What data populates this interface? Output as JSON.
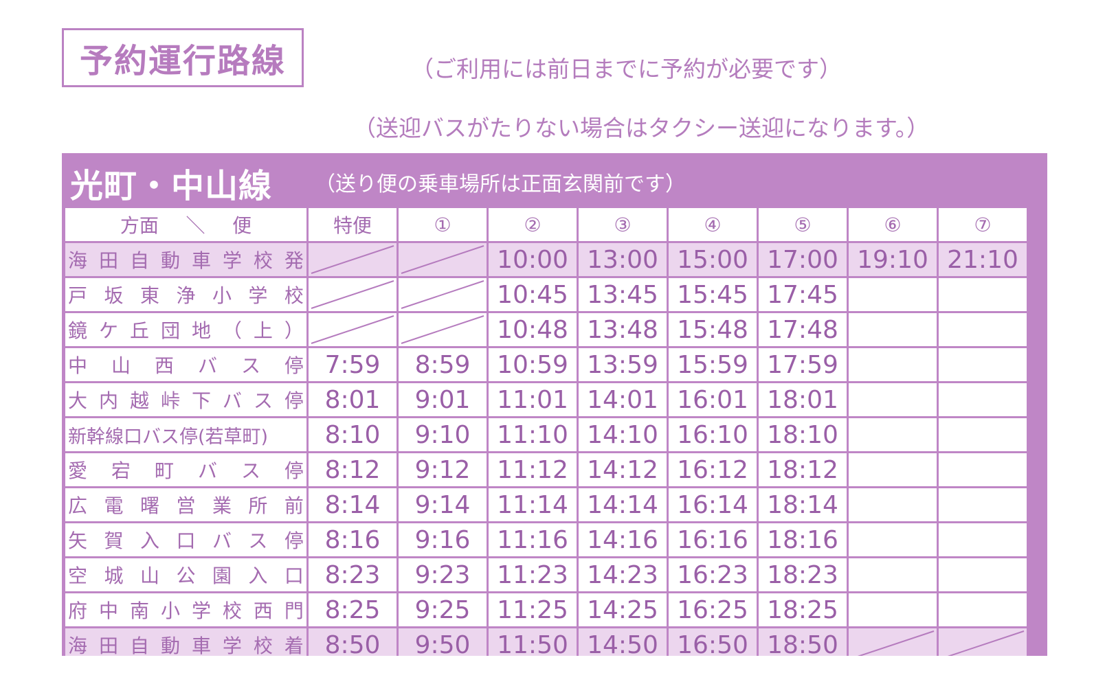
{
  "page_title": "予約運行路線",
  "notes": [
    "（ご利用には前日までに予約が必要です）",
    "（送迎バスがたりない場合はタクシー送迎になります。）"
  ],
  "timetable": {
    "route_name": "光町・中山線",
    "route_note": "（送り便の乗車場所は正面玄関前です）",
    "header_first": [
      "方面",
      "＼",
      "便"
    ],
    "columns": [
      "特便",
      "①",
      "②",
      "③",
      "④",
      "⑤",
      "⑥",
      "⑦"
    ],
    "rows": [
      {
        "stop": "海田自動車学校発",
        "highlight": true,
        "times": [
          "",
          "",
          "10:00",
          "13:00",
          "15:00",
          "17:00",
          "19:10",
          "21:10"
        ],
        "dashed": [
          0,
          1
        ]
      },
      {
        "stop": "戸坂東浄小学校",
        "highlight": false,
        "times": [
          "",
          "",
          "10:45",
          "13:45",
          "15:45",
          "17:45",
          "",
          ""
        ],
        "dashed": [
          0,
          1
        ]
      },
      {
        "stop": "鏡ケ丘団地（上）",
        "highlight": false,
        "times": [
          "",
          "",
          "10:48",
          "13:48",
          "15:48",
          "17:48",
          "",
          ""
        ],
        "dashed": [
          0,
          1
        ]
      },
      {
        "stop": "中山西バス停",
        "highlight": false,
        "times": [
          "7:59",
          "8:59",
          "10:59",
          "13:59",
          "15:59",
          "17:59",
          "",
          ""
        ],
        "dashed": []
      },
      {
        "stop": "大内越峠下バス停",
        "highlight": false,
        "times": [
          "8:01",
          "9:01",
          "11:01",
          "14:01",
          "16:01",
          "18:01",
          "",
          ""
        ],
        "dashed": []
      },
      {
        "stop": "新幹線口バス停(若草町)",
        "highlight": false,
        "compact": true,
        "times": [
          "8:10",
          "9:10",
          "11:10",
          "14:10",
          "16:10",
          "18:10",
          "",
          ""
        ],
        "dashed": []
      },
      {
        "stop": "愛宕町バス停",
        "highlight": false,
        "times": [
          "8:12",
          "9:12",
          "11:12",
          "14:12",
          "16:12",
          "18:12",
          "",
          ""
        ],
        "dashed": []
      },
      {
        "stop": "広電曙営業所前",
        "highlight": false,
        "times": [
          "8:14",
          "9:14",
          "11:14",
          "14:14",
          "16:14",
          "18:14",
          "",
          ""
        ],
        "dashed": []
      },
      {
        "stop": "矢賀入口バス停",
        "highlight": false,
        "times": [
          "8:16",
          "9:16",
          "11:16",
          "14:16",
          "16:16",
          "18:16",
          "",
          ""
        ],
        "dashed": []
      },
      {
        "stop": "空城山公園入口",
        "highlight": false,
        "times": [
          "8:23",
          "9:23",
          "11:23",
          "14:23",
          "16:23",
          "18:23",
          "",
          ""
        ],
        "dashed": []
      },
      {
        "stop": "府中南小学校西門",
        "highlight": false,
        "times": [
          "8:25",
          "9:25",
          "11:25",
          "14:25",
          "16:25",
          "18:25",
          "",
          ""
        ],
        "dashed": []
      },
      {
        "stop": "海田自動車学校着",
        "highlight": true,
        "times": [
          "8:50",
          "9:50",
          "11:50",
          "14:50",
          "16:50",
          "18:50",
          "",
          ""
        ],
        "dashed": [
          6,
          7
        ]
      }
    ]
  }
}
